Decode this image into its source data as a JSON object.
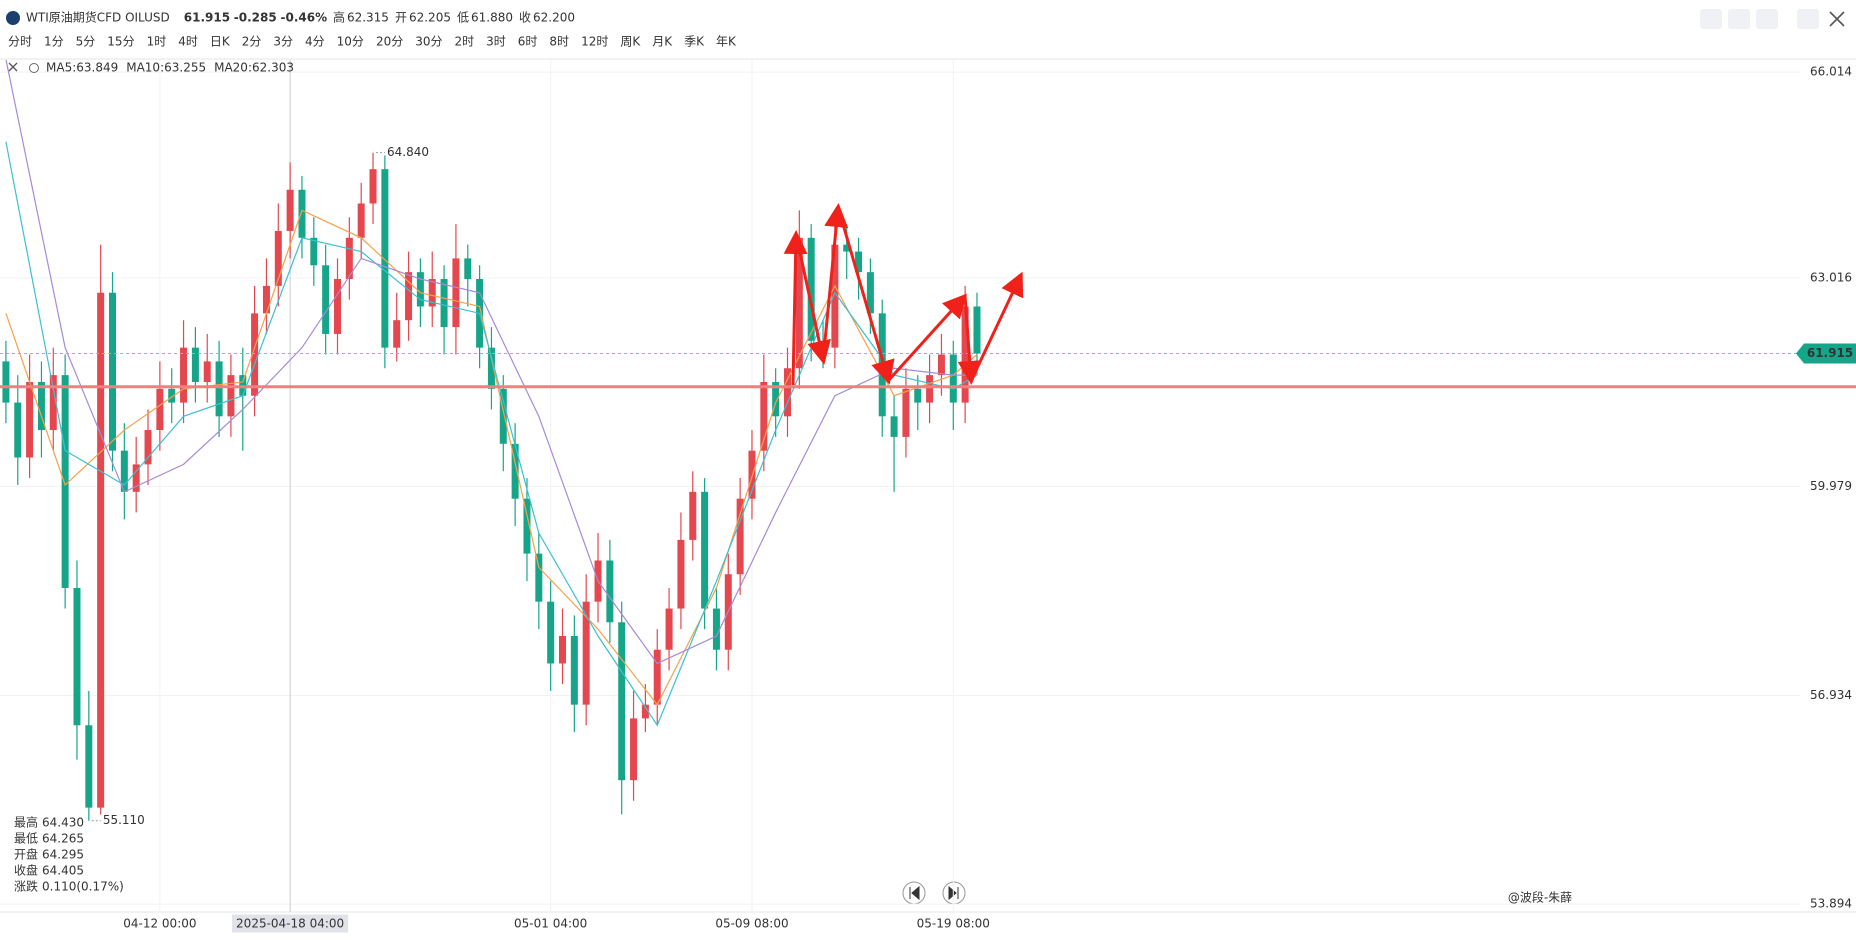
{
  "header": {
    "symbol": "WTI原油期货CFD OILUSD",
    "price": "61.915",
    "change": "-0.285",
    "change_pct": "-0.46%",
    "stats": [
      {
        "label": "高",
        "value": "62.315"
      },
      {
        "label": "开",
        "value": "62.205"
      },
      {
        "label": "低",
        "value": "61.880"
      },
      {
        "label": "收",
        "value": "62.200"
      }
    ],
    "timeframes": [
      "分时",
      "1分",
      "5分",
      "15分",
      "1时",
      "4时",
      "日K",
      "2分",
      "3分",
      "4分",
      "10分",
      "20分",
      "30分",
      "2时",
      "3时",
      "6时",
      "8时",
      "12时",
      "周K",
      "月K",
      "季K",
      "年K"
    ],
    "active_timeframe": 5
  },
  "info": [
    {
      "label": "最高",
      "value": "64.430"
    },
    {
      "label": "最低",
      "value": "64.265"
    },
    {
      "label": "开盘",
      "value": "64.295"
    },
    {
      "label": "收盘",
      "value": "64.405"
    },
    {
      "label": "涨跌",
      "value": "0.110(0.17%)"
    }
  ],
  "watermark": "@波段-朱薛",
  "chart_data": {
    "type": "candlestick",
    "up_color": "#e5474f",
    "down_color": "#17a58a",
    "categories": [
      null,
      null,
      null,
      null,
      null,
      null,
      null,
      null,
      null,
      null,
      null,
      null,
      null,
      "04-12 00:00",
      null,
      null,
      null,
      null,
      null,
      null,
      null,
      null,
      null,
      null,
      "2025-04-18 04:00",
      null,
      null,
      null,
      null,
      null,
      null,
      null,
      null,
      null,
      null,
      null,
      null,
      null,
      null,
      null,
      null,
      null,
      null,
      null,
      null,
      null,
      "05-01 04:00",
      null,
      null,
      null,
      null,
      null,
      null,
      null,
      null,
      null,
      null,
      null,
      null,
      null,
      null,
      null,
      null,
      "05-09 08:00",
      null,
      null,
      null,
      null,
      null,
      null,
      null,
      null,
      null,
      null,
      null,
      null,
      null,
      null,
      null,
      null,
      "05-19 08:00",
      null,
      null
    ],
    "crosshair_index": 24,
    "open": [
      61.8,
      61.2,
      60.4,
      61.5,
      60.8,
      61.6,
      58.5,
      56.5,
      55.3,
      62.8,
      60.5,
      59.9,
      60.3,
      60.8,
      61.4,
      61.2,
      62.0,
      61.5,
      61.8,
      61.0,
      61.6,
      61.3,
      62.5,
      62.9,
      63.7,
      64.3,
      63.6,
      63.2,
      62.2,
      63.0,
      63.6,
      64.1,
      64.6,
      62.0,
      62.4,
      63.1,
      62.6,
      63.0,
      62.3,
      63.3,
      63.0,
      62.0,
      61.4,
      60.6,
      59.8,
      59.0,
      58.3,
      57.4,
      57.8,
      56.8,
      58.3,
      58.9,
      58.0,
      55.7,
      56.6,
      56.8,
      57.6,
      58.2,
      59.2,
      59.9,
      58.2,
      57.6,
      58.7,
      59.8,
      60.5,
      61.5,
      61.0,
      61.7,
      63.6,
      62.1,
      62.0,
      63.5,
      63.4,
      63.1,
      62.5,
      61.0,
      60.7,
      61.4,
      61.2,
      61.6,
      61.9,
      61.2,
      62.6
    ],
    "high": [
      62.1,
      61.6,
      61.9,
      61.8,
      62.0,
      61.9,
      58.9,
      57.0,
      63.5,
      63.1,
      60.9,
      60.7,
      61.1,
      61.8,
      61.7,
      62.4,
      62.3,
      62.2,
      62.1,
      61.9,
      62.0,
      62.9,
      63.3,
      64.1,
      64.7,
      64.5,
      63.9,
      63.5,
      63.3,
      63.9,
      64.4,
      64.84,
      64.8,
      62.8,
      63.4,
      63.3,
      63.4,
      63.2,
      63.8,
      63.5,
      63.2,
      62.3,
      61.6,
      60.9,
      60.1,
      59.3,
      58.6,
      58.2,
      58.1,
      58.7,
      59.3,
      59.2,
      58.3,
      57.0,
      57.1,
      57.9,
      58.5,
      59.6,
      60.2,
      60.1,
      58.5,
      59.0,
      60.1,
      60.8,
      61.9,
      61.7,
      62.0,
      64.0,
      63.8,
      62.4,
      64.0,
      63.8,
      63.6,
      63.3,
      62.7,
      61.3,
      61.7,
      61.6,
      61.9,
      62.2,
      62.1,
      62.9,
      62.8
    ],
    "low": [
      60.9,
      60.0,
      60.1,
      60.4,
      60.5,
      58.2,
      56.0,
      55.11,
      55.2,
      60.2,
      59.5,
      59.6,
      60.0,
      60.5,
      60.9,
      60.9,
      61.2,
      61.2,
      60.7,
      60.7,
      60.5,
      61.0,
      62.2,
      62.6,
      63.3,
      63.3,
      62.9,
      61.9,
      61.9,
      62.7,
      63.3,
      63.8,
      61.7,
      61.8,
      62.1,
      62.3,
      62.3,
      61.9,
      61.9,
      62.6,
      61.7,
      61.1,
      60.2,
      59.4,
      58.6,
      57.9,
      57.0,
      57.1,
      56.4,
      56.5,
      58.0,
      57.7,
      55.2,
      55.4,
      56.4,
      56.5,
      57.3,
      57.9,
      58.9,
      57.9,
      57.3,
      57.3,
      58.4,
      59.5,
      60.2,
      60.7,
      60.7,
      61.4,
      61.8,
      61.7,
      61.7,
      63.0,
      62.7,
      62.2,
      60.7,
      59.9,
      60.4,
      60.8,
      60.9,
      61.3,
      60.8,
      60.9,
      61.6
    ],
    "close": [
      61.2,
      60.4,
      61.5,
      60.8,
      61.6,
      58.5,
      56.5,
      55.3,
      62.8,
      60.5,
      59.9,
      60.3,
      60.8,
      61.4,
      61.2,
      62.0,
      61.5,
      61.8,
      61.0,
      61.6,
      61.3,
      62.5,
      62.9,
      63.7,
      64.3,
      63.6,
      63.2,
      62.2,
      63.0,
      63.6,
      64.1,
      64.6,
      62.0,
      62.4,
      63.1,
      62.6,
      63.0,
      62.3,
      63.3,
      63.0,
      62.0,
      61.4,
      60.6,
      59.8,
      59.0,
      58.3,
      57.4,
      57.8,
      56.8,
      58.3,
      58.9,
      58.0,
      55.7,
      56.6,
      56.8,
      57.6,
      58.2,
      59.2,
      59.9,
      58.2,
      57.6,
      58.7,
      59.8,
      60.5,
      61.5,
      61.0,
      61.7,
      63.6,
      62.1,
      62.0,
      63.5,
      63.4,
      63.1,
      62.5,
      61.0,
      60.7,
      61.4,
      61.2,
      61.6,
      61.9,
      61.2,
      62.6,
      61.915
    ],
    "lines": [
      {
        "name": "MA5:63.849",
        "color": "#f5a04a",
        "x": [
          0,
          5,
          10,
          15,
          20,
          25,
          30,
          35,
          40,
          45,
          50,
          55,
          60,
          65,
          70,
          75,
          80,
          82
        ],
        "values": [
          62.5,
          60.0,
          60.8,
          61.4,
          61.5,
          64.0,
          63.6,
          62.8,
          62.6,
          58.8,
          57.9,
          56.8,
          58.5,
          61.2,
          62.9,
          61.3,
          61.6,
          61.9
        ]
      },
      {
        "name": "MA10:63.255",
        "color": "#3cc0d0",
        "x": [
          0,
          5,
          10,
          15,
          20,
          25,
          30,
          35,
          40,
          45,
          50,
          55,
          60,
          65,
          70,
          75,
          80,
          82
        ],
        "values": [
          65.0,
          60.5,
          60.0,
          61.0,
          61.3,
          63.6,
          63.4,
          62.7,
          62.5,
          59.3,
          57.8,
          56.5,
          58.6,
          60.8,
          62.8,
          61.6,
          61.4,
          61.6
        ]
      },
      {
        "name": "MA20:62.303",
        "color": "#a58bd8",
        "x": [
          0,
          5,
          10,
          15,
          20,
          25,
          30,
          35,
          40,
          45,
          50,
          55,
          60,
          65,
          70,
          75,
          80,
          82
        ],
        "values": [
          66.2,
          62.0,
          59.9,
          60.3,
          61.1,
          62.0,
          63.3,
          63.0,
          62.8,
          61.0,
          58.6,
          57.4,
          57.8,
          59.6,
          61.3,
          61.7,
          61.6,
          61.6
        ]
      }
    ],
    "max_label": "64.840",
    "min_label": "55.110",
    "last_price": 61.915,
    "level": 61.43,
    "xlim": [
      -0.5,
      151.5
    ],
    "ylim": [
      53.78,
      66.19
    ],
    "yticks": [
      53.894,
      56.934,
      59.979,
      63.016,
      66.014
    ],
    "grid": true
  }
}
